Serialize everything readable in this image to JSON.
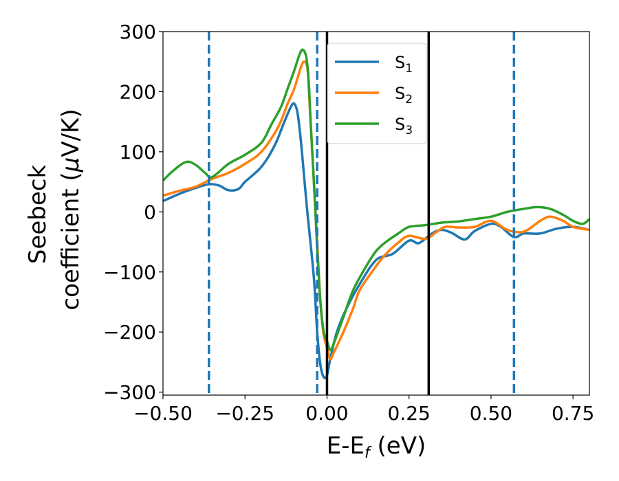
{
  "chart_data": {
    "type": "line",
    "xlabel": {
      "main": "E-E",
      "sub": "f",
      "suffix": " (eV)"
    },
    "ylabel": {
      "line1": "Seebeck",
      "line2_prefix": "coefficient  (",
      "mu": "μ",
      "line2_suffix": "V/K)"
    },
    "xlim": [
      -0.5,
      0.8
    ],
    "ylim": [
      -305,
      300
    ],
    "xticks": [
      -0.5,
      -0.25,
      0.0,
      0.25,
      0.5,
      0.75
    ],
    "xtick_labels": [
      "−0.50",
      "−0.25",
      "0.00",
      "0.25",
      "0.50",
      "0.75"
    ],
    "yticks": [
      -300,
      -200,
      -100,
      0,
      100,
      200,
      300
    ],
    "ytick_labels": [
      "−300",
      "−200",
      "−100",
      "0",
      "100",
      "200",
      "300"
    ],
    "grid": false,
    "legend_position": "top-center",
    "series": [
      {
        "name": "S",
        "sub": "1",
        "color": "#1f77b4",
        "points": [
          [
            -0.5,
            18
          ],
          [
            -0.45,
            30
          ],
          [
            -0.4,
            40
          ],
          [
            -0.36,
            46
          ],
          [
            -0.33,
            44
          ],
          [
            -0.3,
            36
          ],
          [
            -0.27,
            38
          ],
          [
            -0.25,
            50
          ],
          [
            -0.2,
            75
          ],
          [
            -0.16,
            110
          ],
          [
            -0.13,
            150
          ],
          [
            -0.11,
            175
          ],
          [
            -0.1,
            180
          ],
          [
            -0.09,
            165
          ],
          [
            -0.08,
            120
          ],
          [
            -0.07,
            60
          ],
          [
            -0.06,
            0
          ],
          [
            -0.04,
            -110
          ],
          [
            -0.03,
            -200
          ],
          [
            -0.02,
            -255
          ],
          [
            -0.01,
            -275
          ],
          [
            0.0,
            -272
          ],
          [
            0.01,
            -245
          ],
          [
            0.03,
            -200
          ],
          [
            0.06,
            -160
          ],
          [
            0.1,
            -120
          ],
          [
            0.15,
            -80
          ],
          [
            0.2,
            -70
          ],
          [
            0.25,
            -48
          ],
          [
            0.28,
            -52
          ],
          [
            0.32,
            -36
          ],
          [
            0.35,
            -30
          ],
          [
            0.38,
            -35
          ],
          [
            0.42,
            -46
          ],
          [
            0.45,
            -32
          ],
          [
            0.5,
            -20
          ],
          [
            0.53,
            -25
          ],
          [
            0.57,
            -42
          ],
          [
            0.6,
            -36
          ],
          [
            0.65,
            -36
          ],
          [
            0.7,
            -28
          ],
          [
            0.75,
            -25
          ],
          [
            0.8,
            -30
          ]
        ]
      },
      {
        "name": "S",
        "sub": "2",
        "color": "#ff7f0e",
        "points": [
          [
            -0.5,
            27
          ],
          [
            -0.45,
            35
          ],
          [
            -0.4,
            42
          ],
          [
            -0.35,
            55
          ],
          [
            -0.3,
            65
          ],
          [
            -0.25,
            80
          ],
          [
            -0.2,
            100
          ],
          [
            -0.15,
            140
          ],
          [
            -0.12,
            180
          ],
          [
            -0.1,
            205
          ],
          [
            -0.08,
            240
          ],
          [
            -0.07,
            250
          ],
          [
            -0.06,
            240
          ],
          [
            -0.055,
            200
          ],
          [
            -0.05,
            150
          ],
          [
            -0.04,
            50
          ],
          [
            -0.03,
            -50
          ],
          [
            -0.02,
            -150
          ],
          [
            -0.01,
            -205
          ],
          [
            0.0,
            -225
          ],
          [
            0.01,
            -245
          ],
          [
            0.02,
            -235
          ],
          [
            0.05,
            -200
          ],
          [
            0.08,
            -160
          ],
          [
            0.1,
            -130
          ],
          [
            0.15,
            -90
          ],
          [
            0.18,
            -70
          ],
          [
            0.22,
            -50
          ],
          [
            0.25,
            -40
          ],
          [
            0.3,
            -45
          ],
          [
            0.33,
            -35
          ],
          [
            0.36,
            -25
          ],
          [
            0.4,
            -26
          ],
          [
            0.45,
            -25
          ],
          [
            0.5,
            -15
          ],
          [
            0.55,
            -30
          ],
          [
            0.6,
            -33
          ],
          [
            0.65,
            -15
          ],
          [
            0.68,
            -8
          ],
          [
            0.72,
            -15
          ],
          [
            0.75,
            -25
          ],
          [
            0.8,
            -30
          ]
        ]
      },
      {
        "name": "S",
        "sub": "3",
        "color": "#2ca02c",
        "points": [
          [
            -0.5,
            52
          ],
          [
            -0.47,
            68
          ],
          [
            -0.43,
            83
          ],
          [
            -0.4,
            78
          ],
          [
            -0.37,
            64
          ],
          [
            -0.35,
            58
          ],
          [
            -0.3,
            80
          ],
          [
            -0.25,
            95
          ],
          [
            -0.2,
            115
          ],
          [
            -0.17,
            145
          ],
          [
            -0.14,
            175
          ],
          [
            -0.12,
            205
          ],
          [
            -0.1,
            235
          ],
          [
            -0.085,
            260
          ],
          [
            -0.075,
            270
          ],
          [
            -0.065,
            262
          ],
          [
            -0.06,
            245
          ],
          [
            -0.055,
            210
          ],
          [
            -0.05,
            150
          ],
          [
            -0.04,
            50
          ],
          [
            -0.03,
            -60
          ],
          [
            -0.02,
            -150
          ],
          [
            -0.01,
            -200
          ],
          [
            0.0,
            -215
          ],
          [
            0.01,
            -230
          ],
          [
            0.02,
            -220
          ],
          [
            0.05,
            -175
          ],
          [
            0.08,
            -130
          ],
          [
            0.12,
            -90
          ],
          [
            0.15,
            -65
          ],
          [
            0.18,
            -50
          ],
          [
            0.22,
            -35
          ],
          [
            0.25,
            -25
          ],
          [
            0.3,
            -22
          ],
          [
            0.35,
            -18
          ],
          [
            0.4,
            -16
          ],
          [
            0.45,
            -12
          ],
          [
            0.5,
            -8
          ],
          [
            0.55,
            0
          ],
          [
            0.6,
            5
          ],
          [
            0.64,
            8
          ],
          [
            0.68,
            5
          ],
          [
            0.72,
            -5
          ],
          [
            0.75,
            -15
          ],
          [
            0.78,
            -20
          ],
          [
            0.8,
            -12
          ]
        ]
      }
    ],
    "vertical_lines": [
      {
        "x": -0.36,
        "style": "dashed",
        "color": "#1f77b4"
      },
      {
        "x": -0.03,
        "style": "dashed",
        "color": "#1f77b4"
      },
      {
        "x": 0.0,
        "style": "solid",
        "color": "#000000"
      },
      {
        "x": 0.31,
        "style": "solid",
        "color": "#000000"
      },
      {
        "x": 0.57,
        "style": "dashed",
        "color": "#1f77b4"
      }
    ]
  }
}
